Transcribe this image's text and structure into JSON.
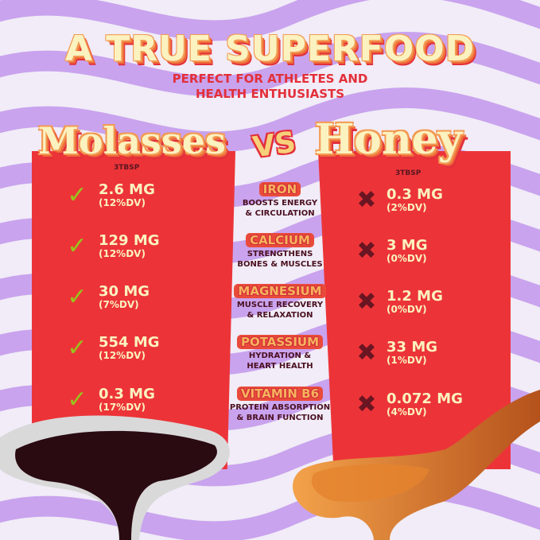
{
  "title": "A TRUE SUPERFOOD",
  "subtitle_line1": "PERFECT FOR ATHLETES AND",
  "subtitle_line2": "HEALTH ENTHUSIASTS",
  "left": {
    "name": "Molasses",
    "serving": "3TBSP",
    "icon": "check-icon",
    "rows": [
      {
        "value": "2.6 MG",
        "dv": "(12%DV)"
      },
      {
        "value": "129 MG",
        "dv": "(12%DV)"
      },
      {
        "value": "30 MG",
        "dv": "(7%DV)"
      },
      {
        "value": "554 MG",
        "dv": "(12%DV)"
      },
      {
        "value": "0.3 MG",
        "dv": "(17%DV)"
      }
    ]
  },
  "vs": "VS",
  "right": {
    "name": "Honey",
    "serving": "3TBSP",
    "icon": "x-icon",
    "rows": [
      {
        "value": "0.3 MG",
        "dv": "(2%DV)"
      },
      {
        "value": "3 MG",
        "dv": "(0%DV)"
      },
      {
        "value": "1.2 MG",
        "dv": "(0%DV)"
      },
      {
        "value": "33 MG",
        "dv": "(1%DV)"
      },
      {
        "value": "0.072 MG",
        "dv": "(4%DV)"
      }
    ]
  },
  "nutrients": [
    {
      "name": "IRON",
      "l1": "BOOSTS ENERGY",
      "l2": "& CIRCULATION"
    },
    {
      "name": "CALCIUM",
      "l1": "STRENGTHENS",
      "l2": "BONES & MUSCLES"
    },
    {
      "name": "MAGNESIUM",
      "l1": "MUSCLE RECOVERY",
      "l2": "& RELAXATION"
    },
    {
      "name": "POTASSIUM",
      "l1": "HYDRATION &",
      "l2": "HEART HEALTH"
    },
    {
      "name": "VITAMIN B6",
      "l1": "PROTEIN ABSORPTION",
      "l2": "& BRAIN FUNCTION"
    }
  ],
  "colors": {
    "panel": "#ec3438",
    "stripe": "#c9a3ee",
    "background": "#f1ecf7",
    "check": "#9ac31c",
    "cross": "#6a1522"
  }
}
